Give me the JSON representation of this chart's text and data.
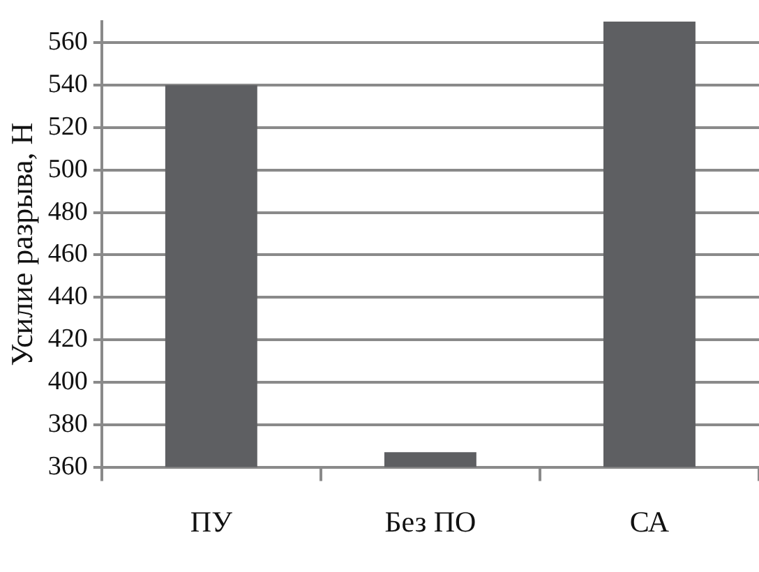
{
  "chart_data": {
    "type": "bar",
    "ylabel": "Усилие разрыва, Н",
    "categories": [
      "ПУ",
      "Без ПО",
      "СА"
    ],
    "values": [
      540,
      367,
      570
    ],
    "color": "#5e5f62",
    "ylim": [
      360,
      570
    ],
    "yticks": [
      360,
      380,
      400,
      420,
      440,
      460,
      480,
      500,
      520,
      540,
      560
    ],
    "grid": "y"
  }
}
